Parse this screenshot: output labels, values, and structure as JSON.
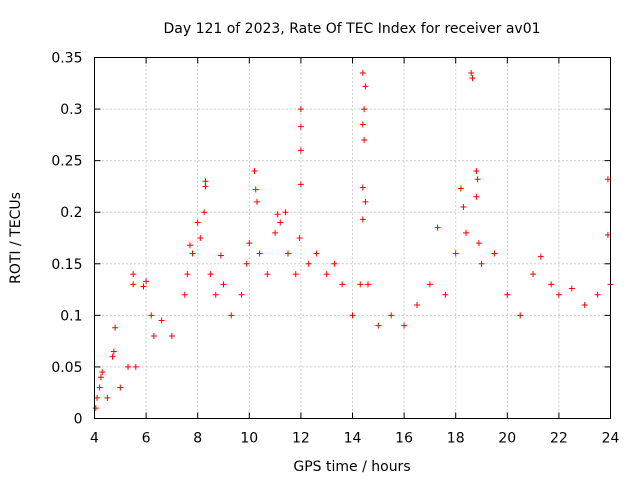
{
  "chart_data": {
    "type": "scatter",
    "title": "Day 121 of 2023, Rate Of TEC Index for receiver av01",
    "xlabel": "GPS time / hours",
    "ylabel": "ROTI / TECUs",
    "xlim": [
      4,
      24
    ],
    "ylim": [
      0,
      0.35
    ],
    "grid": true,
    "marker": "+",
    "marker_color": "#ff0000",
    "xticks": [
      "4",
      "6",
      "8",
      "10",
      "12",
      "14",
      "16",
      "18",
      "20",
      "22",
      "24"
    ],
    "yticks": [
      "0",
      "0.05",
      "0.1",
      "0.15",
      "0.2",
      "0.25",
      "0.3",
      "0.35"
    ],
    "series": [
      {
        "points": [
          [
            4.05,
            0.01
          ],
          [
            4.1,
            0.02
          ],
          [
            4.2,
            0.03
          ],
          [
            4.25,
            0.04
          ],
          [
            4.3,
            0.045
          ],
          [
            4.5,
            0.02
          ],
          [
            4.7,
            0.06
          ],
          [
            4.8,
            0.088
          ],
          [
            4.75,
            0.065
          ],
          [
            5.0,
            0.03
          ],
          [
            5.3,
            0.05
          ],
          [
            5.5,
            0.14
          ],
          [
            5.5,
            0.13
          ],
          [
            5.6,
            0.05
          ],
          [
            5.9,
            0.128
          ],
          [
            6.0,
            0.133
          ],
          [
            6.2,
            0.1
          ],
          [
            6.3,
            0.08
          ],
          [
            6.6,
            0.095
          ],
          [
            7.0,
            0.08
          ],
          [
            7.5,
            0.12
          ],
          [
            7.6,
            0.14
          ],
          [
            7.7,
            0.168
          ],
          [
            7.8,
            0.16
          ],
          [
            8.0,
            0.19
          ],
          [
            8.1,
            0.175
          ],
          [
            8.3,
            0.23
          ],
          [
            8.3,
            0.225
          ],
          [
            8.25,
            0.2
          ],
          [
            8.5,
            0.14
          ],
          [
            8.7,
            0.12
          ],
          [
            8.9,
            0.158
          ],
          [
            9.0,
            0.13
          ],
          [
            9.3,
            0.1
          ],
          [
            9.7,
            0.12
          ],
          [
            9.9,
            0.15
          ],
          [
            10.0,
            0.17
          ],
          [
            10.2,
            0.24
          ],
          [
            10.25,
            0.222
          ],
          [
            10.3,
            0.21
          ],
          [
            10.4,
            0.16
          ],
          [
            10.7,
            0.14
          ],
          [
            11.0,
            0.18
          ],
          [
            11.1,
            0.198
          ],
          [
            11.2,
            0.19
          ],
          [
            11.4,
            0.2
          ],
          [
            11.5,
            0.16
          ],
          [
            11.8,
            0.14
          ],
          [
            12.0,
            0.3
          ],
          [
            12.0,
            0.283
          ],
          [
            12.0,
            0.26
          ],
          [
            12.0,
            0.227
          ],
          [
            11.95,
            0.175
          ],
          [
            12.3,
            0.15
          ],
          [
            12.6,
            0.16
          ],
          [
            13.0,
            0.14
          ],
          [
            13.3,
            0.15
          ],
          [
            13.6,
            0.13
          ],
          [
            14.0,
            0.1
          ],
          [
            14.3,
            0.13
          ],
          [
            14.4,
            0.335
          ],
          [
            14.5,
            0.322
          ],
          [
            14.45,
            0.3
          ],
          [
            14.4,
            0.285
          ],
          [
            14.45,
            0.27
          ],
          [
            14.4,
            0.224
          ],
          [
            14.5,
            0.21
          ],
          [
            14.4,
            0.193
          ],
          [
            14.6,
            0.13
          ],
          [
            15.0,
            0.09
          ],
          [
            15.5,
            0.1
          ],
          [
            16.0,
            0.09
          ],
          [
            16.5,
            0.11
          ],
          [
            17.0,
            0.13
          ],
          [
            17.3,
            0.185
          ],
          [
            17.6,
            0.12
          ],
          [
            18.0,
            0.16
          ],
          [
            18.2,
            0.223
          ],
          [
            18.3,
            0.205
          ],
          [
            18.4,
            0.18
          ],
          [
            18.6,
            0.335
          ],
          [
            18.65,
            0.33
          ],
          [
            18.8,
            0.24
          ],
          [
            18.85,
            0.232
          ],
          [
            18.8,
            0.215
          ],
          [
            18.9,
            0.17
          ],
          [
            19.0,
            0.15
          ],
          [
            19.5,
            0.16
          ],
          [
            20.0,
            0.12
          ],
          [
            20.5,
            0.1
          ],
          [
            21.0,
            0.14
          ],
          [
            21.3,
            0.157
          ],
          [
            21.7,
            0.13
          ],
          [
            22.0,
            0.12
          ],
          [
            22.5,
            0.126
          ],
          [
            23.0,
            0.11
          ],
          [
            23.5,
            0.12
          ],
          [
            23.9,
            0.232
          ],
          [
            23.9,
            0.178
          ],
          [
            24.0,
            0.13
          ]
        ]
      }
    ]
  }
}
